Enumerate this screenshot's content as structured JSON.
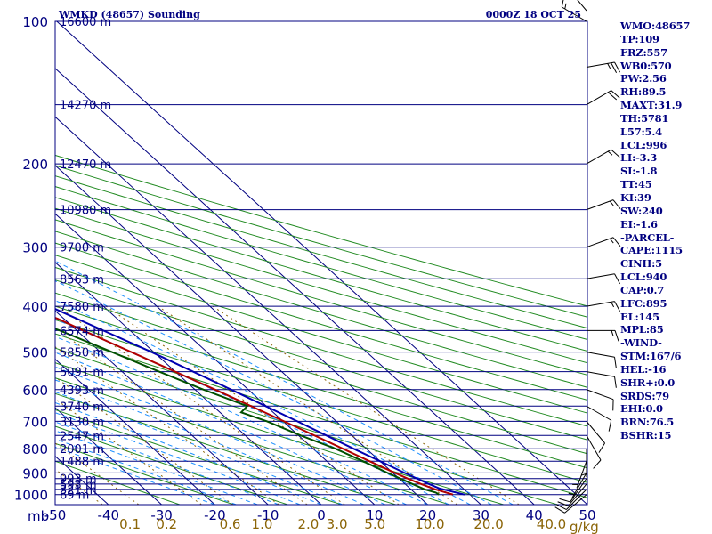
{
  "station": {
    "title": "WMKD (48657) Sounding",
    "time": "0000Z 18 OCT 25"
  },
  "colors": {
    "background": "#ffffff",
    "isobars": "#000080",
    "isotherms": "#000080",
    "dry_adiabats": "#228b22",
    "moist_adiabats": "#1e90ff",
    "mixing_ratio": "#8b6508",
    "temperature": "#b00000",
    "dewpoint": "#005000",
    "parcel": "#0000b0",
    "wind_barbs": "#000000"
  },
  "chart_data": {
    "type": "skew-t",
    "title": "WMKD (48657) Sounding",
    "subtitle": "0000Z 18 OCT 25",
    "xlabel": "",
    "ylabel": "mb",
    "pressure_axis_mb": {
      "range": [
        1050,
        100
      ],
      "scale": "log"
    },
    "temperature_axis_c": {
      "range": [
        -50,
        50
      ],
      "ticks": [
        -50,
        -40,
        -30,
        -20,
        -10,
        0,
        10,
        20,
        30,
        40,
        50
      ]
    },
    "temperature_tick_labels": [
      "-50",
      "-40",
      "-30",
      "-20",
      "-10",
      "0",
      "10",
      "20",
      "30",
      "40",
      "50"
    ],
    "mixing_ratio_axis": {
      "unit": "g/kg",
      "ticks": [
        0.1,
        0.2,
        0.6,
        1.0,
        2.0,
        3.0,
        5.0,
        10.0,
        20.0,
        40.0
      ],
      "labels": [
        "0.1",
        "0.2",
        "0.6",
        "1.0",
        "2.0",
        "3.0",
        "5.0",
        "10.0",
        "20.0",
        "40.0"
      ]
    },
    "pressure_levels_mb": [
      1000,
      900,
      800,
      700,
      600,
      500,
      400,
      300,
      200,
      100
    ],
    "pressure_tick_labels": [
      "1000",
      "900",
      "800",
      "700",
      "600",
      "500",
      "400",
      "300",
      "200",
      "100"
    ],
    "height_levels": [
      {
        "p": 1000,
        "h": "69 m"
      },
      {
        "p": 975,
        "h": "321 m"
      },
      {
        "p": 950,
        "h": "593 m"
      },
      {
        "p": 925,
        "h": "993 m"
      },
      {
        "p": 850,
        "h": "1488 m"
      },
      {
        "p": 800,
        "h": "2001 m"
      },
      {
        "p": 750,
        "h": "2547 m"
      },
      {
        "p": 700,
        "h": "3130 m"
      },
      {
        "p": 650,
        "h": "3740 m"
      },
      {
        "p": 600,
        "h": "4393 m"
      },
      {
        "p": 550,
        "h": "5091 m"
      },
      {
        "p": 500,
        "h": "5850 m"
      },
      {
        "p": 450,
        "h": "6574 m"
      },
      {
        "p": 400,
        "h": "7580 m"
      },
      {
        "p": 350,
        "h": "8563 m"
      },
      {
        "p": 300,
        "h": "9700 m"
      },
      {
        "p": 250,
        "h": "10980 m"
      },
      {
        "p": 200,
        "h": "12470 m"
      },
      {
        "p": 150,
        "h": "14270 m"
      },
      {
        "p": 100,
        "h": "16600 m"
      }
    ],
    "series": [
      {
        "name": "Temperature",
        "unit": "C",
        "points": [
          [
            1000,
            26.8
          ],
          [
            975,
            24.6
          ],
          [
            950,
            23.0
          ],
          [
            925,
            21.6
          ],
          [
            900,
            20.4
          ],
          [
            850,
            18.0
          ],
          [
            800,
            15.6
          ],
          [
            700,
            10.2
          ],
          [
            600,
            3.8
          ],
          [
            500,
            -4.2
          ],
          [
            450,
            -8.8
          ],
          [
            425,
            -11.2
          ],
          [
            400,
            -15.0
          ],
          [
            350,
            -20.5
          ],
          [
            300,
            -28.0
          ],
          [
            250,
            -37.5
          ],
          [
            200,
            -49.0
          ],
          [
            150,
            -64.0
          ],
          [
            120,
            -75.0
          ],
          [
            100,
            -80.5
          ],
          [
            98,
            -78.0
          ],
          [
            95,
            -74.5
          ],
          [
            93,
            -72.0
          ]
        ]
      },
      {
        "name": "Dewpoint",
        "unit": "C",
        "points": [
          [
            1000,
            24.2
          ],
          [
            990,
            24.0
          ],
          [
            975,
            22.6
          ],
          [
            950,
            21.4
          ],
          [
            925,
            20.2
          ],
          [
            900,
            19.0
          ],
          [
            850,
            16.8
          ],
          [
            800,
            14.2
          ],
          [
            750,
            10.4
          ],
          [
            700,
            7.0
          ],
          [
            670,
            4.0
          ],
          [
            650,
            6.4
          ],
          [
            600,
            1.6
          ],
          [
            550,
            -3.0
          ],
          [
            500,
            -7.8
          ],
          [
            450,
            -13.2
          ],
          [
            420,
            -17.6
          ],
          [
            410,
            -21.5
          ],
          [
            400,
            -25.2
          ],
          [
            390,
            -22.0
          ],
          [
            350,
            -24.5
          ],
          [
            300,
            -29.5
          ],
          [
            250,
            -40.0
          ],
          [
            200,
            -55.0
          ],
          [
            150,
            -70.0
          ],
          [
            120,
            -82.0
          ],
          [
            100,
            -88.0
          ],
          [
            95,
            -86.5
          ]
        ]
      },
      {
        "name": "Parcel",
        "unit": "C",
        "points": [
          [
            1000,
            29.0
          ],
          [
            985,
            27.2
          ],
          [
            970,
            25.5
          ],
          [
            950,
            24.5
          ],
          [
            900,
            22.2
          ],
          [
            850,
            20.0
          ],
          [
            800,
            17.6
          ],
          [
            700,
            12.7
          ],
          [
            600,
            6.8
          ],
          [
            500,
            -0.4
          ],
          [
            400,
            -10.2
          ],
          [
            300,
            -24.0
          ],
          [
            250,
            -34.0
          ],
          [
            200,
            -47.0
          ],
          [
            150,
            -63.5
          ],
          [
            120,
            -73.5
          ],
          [
            100,
            -79.0
          ],
          [
            95,
            -80.5
          ]
        ]
      }
    ],
    "wind_barbs": [
      {
        "p": 1000,
        "dir": 230,
        "spd": 10
      },
      {
        "p": 975,
        "dir": 225,
        "spd": 10
      },
      {
        "p": 950,
        "dir": 220,
        "spd": 10
      },
      {
        "p": 925,
        "dir": 215,
        "spd": 10
      },
      {
        "p": 900,
        "dir": 210,
        "spd": 5
      },
      {
        "p": 850,
        "dir": 200,
        "spd": 5
      },
      {
        "p": 800,
        "dir": 180,
        "spd": 5
      },
      {
        "p": 750,
        "dir": 150,
        "spd": 10
      },
      {
        "p": 700,
        "dir": 140,
        "spd": 10
      },
      {
        "p": 650,
        "dir": 120,
        "spd": 10
      },
      {
        "p": 600,
        "dir": 110,
        "spd": 10
      },
      {
        "p": 550,
        "dir": 100,
        "spd": 10
      },
      {
        "p": 500,
        "dir": 100,
        "spd": 10
      },
      {
        "p": 450,
        "dir": 90,
        "spd": 15
      },
      {
        "p": 400,
        "dir": 80,
        "spd": 15
      },
      {
        "p": 350,
        "dir": 80,
        "spd": 10
      },
      {
        "p": 300,
        "dir": 70,
        "spd": 15
      },
      {
        "p": 250,
        "dir": 70,
        "spd": 15
      },
      {
        "p": 200,
        "dir": 60,
        "spd": 15
      },
      {
        "p": 150,
        "dir": 60,
        "spd": 20
      },
      {
        "p": 125,
        "dir": 80,
        "spd": 25
      },
      {
        "p": 100,
        "dir": 300,
        "spd": 15
      },
      {
        "p": 90,
        "dir": 320,
        "spd": 60
      }
    ]
  },
  "indices": [
    "WMO:48657",
    "TP:109",
    "FRZ:557",
    "WB0:570",
    "PW:2.56",
    "RH:89.5",
    "MAXT:31.9",
    "TH:5781",
    "L57:5.4",
    "LCL:996",
    "LI:-3.3",
    "SI:-1.8",
    "TT:45",
    "KI:39",
    "SW:240",
    "EI:-1.6",
    "-PARCEL-",
    "CAPE:1115",
    "CINH:5",
    "LCL:940",
    "CAP:0.7",
    "LFC:895",
    "EL:145",
    "MPL:85",
    "-WIND-",
    "STM:167/6",
    "HEL:-16",
    "SHR+:0.0",
    "SRDS:79",
    "EHI:0.0",
    "BRN:76.5",
    "BSHR:15"
  ]
}
